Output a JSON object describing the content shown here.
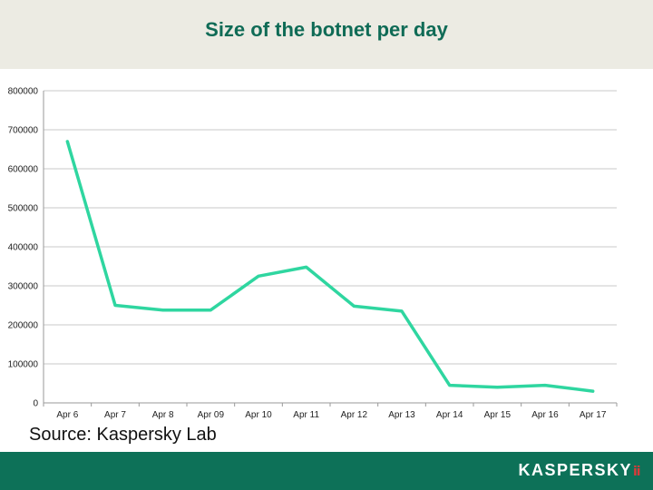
{
  "header": {
    "title": "Size of the botnet per day"
  },
  "footer": {
    "source": "Source: Kaspersky Lab",
    "brand": "KASPERSKY",
    "brand_mark": "ⅱ"
  },
  "colors": {
    "header_bg": "#ecebe3",
    "title": "#0f6b56",
    "series": "#2fd6a0",
    "footer_bg": "#0d7158"
  },
  "chart_data": {
    "type": "line",
    "title": "Size of the botnet per day",
    "xlabel": "",
    "ylabel": "",
    "categories": [
      "Apr 6",
      "Apr 7",
      "Apr 8",
      "Apr 09",
      "Apr 10",
      "Apr 11",
      "Apr 12",
      "Apr 13",
      "Apr 14",
      "Apr 15",
      "Apr 16",
      "Apr 17"
    ],
    "series": [
      {
        "values": [
          670000,
          250000,
          238000,
          238000,
          325000,
          348000,
          248000,
          235000,
          45000,
          40000,
          45000,
          30000
        ]
      }
    ],
    "yticks": [
      "0",
      "100000",
      "200000",
      "300000",
      "400000",
      "500000",
      "600000",
      "700000",
      "800000"
    ],
    "ylim": [
      0,
      800000
    ],
    "grid": true,
    "legend": "none"
  }
}
